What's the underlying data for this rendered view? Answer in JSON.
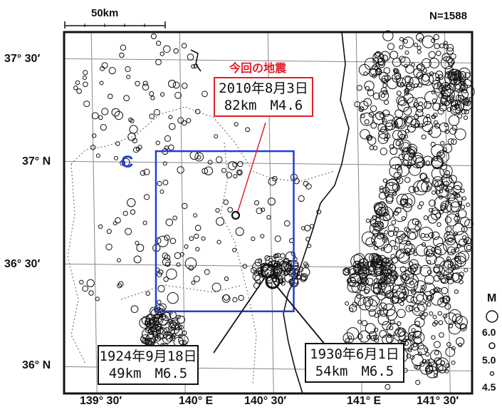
{
  "scale_bar": {
    "label": "50km"
  },
  "count_label": "N=1588",
  "lat_labels": [
    "37° 30′",
    "37° N",
    "36° 30′",
    "36° N"
  ],
  "lon_labels": [
    "139° 30′",
    "140° E",
    "140° 30′",
    "141° E",
    "141° 30′"
  ],
  "map": {
    "lon_range": [
      139.33,
      141.64
    ],
    "lat_range": [
      35.88,
      37.64
    ]
  },
  "focus_box": {
    "lon": [
      139.85,
      140.63
    ],
    "lat": [
      36.28,
      37.06
    ],
    "color": "#1f3fd8"
  },
  "marker_c": {
    "label": "C",
    "color": "#1f3fd8"
  },
  "main_event": {
    "heading": "今回の地震",
    "line1": "2010年8月3日",
    "line2": "82km　M4.6",
    "color": "#e0202a"
  },
  "event_1924": {
    "line1": "1924年9月18日",
    "line2": "49km　M6.5"
  },
  "event_1930": {
    "line1": "1930年6月1日",
    "line2": "54km　M6.5"
  },
  "legend": {
    "title": "M",
    "items": [
      "6.0",
      "5.0",
      "4.5"
    ]
  }
}
